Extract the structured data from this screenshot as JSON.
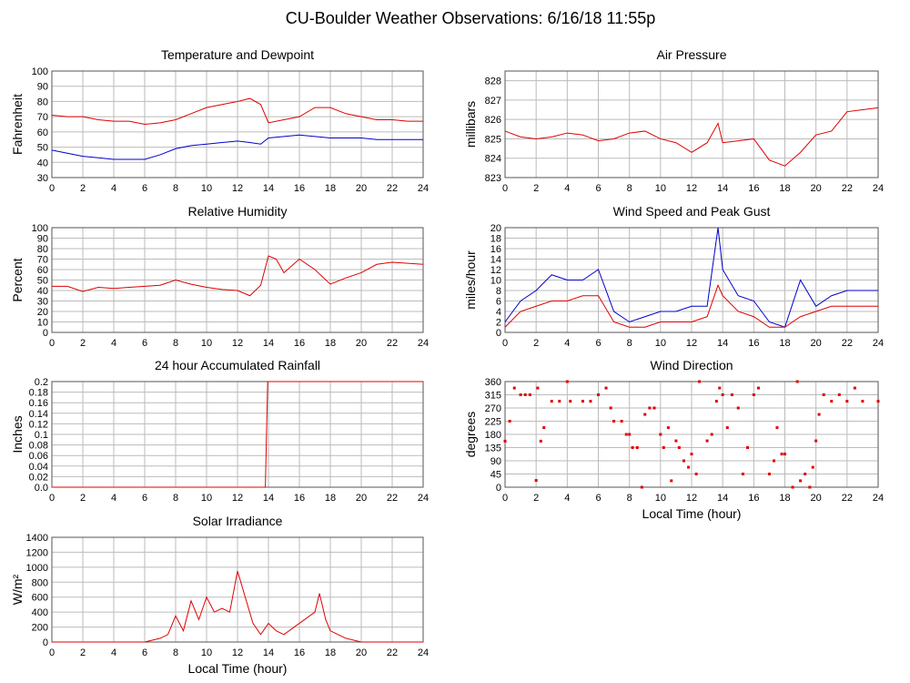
{
  "title": "CU-Boulder Weather Observations: 6/16/18 11:55p",
  "chart_data": [
    {
      "type": "line",
      "title": "Temperature and Dewpoint",
      "ylabel": "Fahrenheit",
      "x": [
        0,
        1,
        2,
        3,
        4,
        5,
        6,
        7,
        8,
        9,
        10,
        11,
        12,
        12.8,
        13.5,
        14,
        15,
        16,
        17,
        18,
        19,
        20,
        21,
        22,
        23,
        24
      ],
      "series": [
        {
          "color": "#e00000",
          "values": [
            71,
            70,
            70,
            68,
            67,
            67,
            65,
            66,
            68,
            72,
            76,
            78,
            80,
            82,
            78,
            66,
            68,
            70,
            76,
            76,
            72,
            70,
            68,
            68,
            67,
            67
          ]
        },
        {
          "color": "#0000cc",
          "values": [
            48,
            46,
            44,
            43,
            42,
            42,
            42,
            45,
            49,
            51,
            52,
            53,
            54,
            53,
            52,
            56,
            57,
            58,
            57,
            56,
            56,
            56,
            55,
            55,
            55,
            55
          ]
        }
      ],
      "xlim": [
        0,
        24
      ],
      "ylim": [
        30,
        100
      ],
      "xticks": [
        0,
        2,
        4,
        6,
        8,
        10,
        12,
        14,
        16,
        18,
        20,
        22,
        24
      ],
      "yticks": [
        30,
        40,
        50,
        60,
        70,
        80,
        90,
        100
      ],
      "grid": true
    },
    {
      "type": "line",
      "title": "Air Pressure",
      "ylabel": "millibars",
      "x": [
        0,
        1,
        2,
        3,
        4,
        5,
        6,
        7,
        8,
        9,
        10,
        11,
        12,
        13,
        13.7,
        14,
        15,
        16,
        17,
        18,
        19,
        20,
        21,
        22,
        23,
        24
      ],
      "series": [
        {
          "color": "#e00000",
          "values": [
            825.4,
            825.1,
            825.0,
            825.1,
            825.3,
            825.2,
            824.9,
            825.0,
            825.3,
            825.4,
            825.0,
            824.8,
            824.3,
            824.8,
            825.8,
            824.8,
            824.9,
            825.0,
            823.9,
            823.6,
            824.3,
            825.2,
            825.4,
            826.4,
            826.5,
            826.6
          ]
        }
      ],
      "xlim": [
        0,
        24
      ],
      "ylim": [
        823,
        828.5
      ],
      "xticks": [
        0,
        2,
        4,
        6,
        8,
        10,
        12,
        14,
        16,
        18,
        20,
        22,
        24
      ],
      "yticks": [
        823,
        824,
        825,
        826,
        827,
        828
      ],
      "grid": true
    },
    {
      "type": "line",
      "title": "Relative Humidity",
      "ylabel": "Percent",
      "x": [
        0,
        1,
        2,
        3,
        4,
        5,
        6,
        7,
        8,
        9,
        10,
        11,
        12,
        12.8,
        13.5,
        14,
        14.5,
        15,
        16,
        17,
        18,
        19,
        20,
        21,
        22,
        23,
        24
      ],
      "series": [
        {
          "color": "#e00000",
          "values": [
            44,
            44,
            39,
            43,
            42,
            43,
            44,
            45,
            50,
            46,
            43,
            41,
            40,
            35,
            45,
            73,
            70,
            57,
            70,
            60,
            46,
            52,
            57,
            65,
            67,
            66,
            65
          ]
        }
      ],
      "xlim": [
        0,
        24
      ],
      "ylim": [
        0,
        100
      ],
      "xticks": [
        0,
        2,
        4,
        6,
        8,
        10,
        12,
        14,
        16,
        18,
        20,
        22,
        24
      ],
      "yticks": [
        0,
        10,
        20,
        30,
        40,
        50,
        60,
        70,
        80,
        90,
        100
      ],
      "grid": true
    },
    {
      "type": "line",
      "title": "Wind Speed and Peak Gust",
      "ylabel": "miles/hour",
      "x": [
        0,
        1,
        2,
        3,
        4,
        5,
        6,
        7,
        8,
        9,
        10,
        11,
        12,
        13,
        13.7,
        14,
        15,
        16,
        17,
        18,
        19,
        20,
        21,
        22,
        23,
        24
      ],
      "series": [
        {
          "color": "#0000cc",
          "values": [
            2,
            6,
            8,
            11,
            10,
            10,
            12,
            4,
            2,
            3,
            4,
            4,
            5,
            5,
            20,
            12,
            7,
            6,
            2,
            1,
            10,
            5,
            7,
            8,
            8,
            8
          ]
        },
        {
          "color": "#e00000",
          "values": [
            1,
            4,
            5,
            6,
            6,
            7,
            7,
            2,
            1,
            1,
            2,
            2,
            2,
            3,
            9,
            7,
            4,
            3,
            1,
            1,
            3,
            4,
            5,
            5,
            5,
            5
          ]
        }
      ],
      "xlim": [
        0,
        24
      ],
      "ylim": [
        0,
        20
      ],
      "xticks": [
        0,
        2,
        4,
        6,
        8,
        10,
        12,
        14,
        16,
        18,
        20,
        22,
        24
      ],
      "yticks": [
        0,
        2,
        4,
        6,
        8,
        10,
        12,
        14,
        16,
        18,
        20
      ],
      "grid": true
    },
    {
      "type": "line",
      "title": "24 hour Accumulated Rainfall",
      "ylabel": "Inches",
      "x": [
        0,
        13.8,
        13.95,
        24
      ],
      "series": [
        {
          "color": "#e00000",
          "values": [
            0,
            0,
            0.2,
            0.2
          ]
        }
      ],
      "xlim": [
        0,
        24
      ],
      "ylim": [
        0,
        0.2
      ],
      "xticks": [
        0,
        2,
        4,
        6,
        8,
        10,
        12,
        14,
        16,
        18,
        20,
        22,
        24
      ],
      "yticks": [
        {
          "value": 0,
          "label": "0.0"
        },
        0.02,
        0.04,
        0.06,
        0.08,
        0.1,
        0.12,
        0.14,
        0.16,
        0.18,
        0.2
      ],
      "grid": true
    },
    {
      "type": "scatter",
      "title": "Wind Direction",
      "ylabel": "degrees",
      "xlabel": "Local Time (hour)",
      "x": [
        0,
        0.3,
        0.6,
        1,
        1.3,
        1.6,
        2,
        2.1,
        2.3,
        2.5,
        3,
        3.5,
        4,
        4.2,
        5,
        5.5,
        6,
        6.5,
        6.8,
        7,
        7.5,
        7.8,
        8,
        8.2,
        8.5,
        8.8,
        9,
        9.3,
        9.6,
        10,
        10.2,
        10.5,
        10.7,
        11,
        11.2,
        11.5,
        11.8,
        12,
        12.3,
        12.5,
        13,
        13.3,
        13.6,
        13.8,
        14,
        14.3,
        14.6,
        15,
        15.3,
        15.6,
        16,
        16.3,
        17,
        17.3,
        17.5,
        17.8,
        18,
        18.5,
        18.8,
        19,
        19.3,
        19.6,
        19.8,
        20,
        20.2,
        20.5,
        21,
        21.5,
        22,
        22.5,
        23,
        24
      ],
      "series": [
        {
          "color": "#e00000",
          "values": [
            157,
            225,
            338,
            315,
            315,
            315,
            23,
            338,
            157,
            203,
            293,
            293,
            360,
            293,
            293,
            293,
            315,
            338,
            270,
            225,
            225,
            180,
            180,
            135,
            135,
            0,
            248,
            270,
            270,
            180,
            135,
            203,
            22,
            158,
            135,
            90,
            68,
            113,
            45,
            360,
            158,
            180,
            293,
            338,
            315,
            203,
            315,
            270,
            45,
            135,
            315,
            338,
            45,
            90,
            203,
            113,
            113,
            0,
            360,
            22,
            45,
            0,
            68,
            158,
            248,
            315,
            293,
            315,
            293,
            338,
            293,
            293
          ]
        }
      ],
      "xlim": [
        0,
        24
      ],
      "ylim": [
        0,
        360
      ],
      "xticks": [
        0,
        2,
        4,
        6,
        8,
        10,
        12,
        14,
        16,
        18,
        20,
        22,
        24
      ],
      "yticks": [
        0,
        45,
        90,
        135,
        180,
        225,
        270,
        315,
        360
      ],
      "grid": true
    },
    {
      "type": "line",
      "title": "Solar Irradiance",
      "ylabel": "W/m²",
      "xlabel": "Local Time (hour)",
      "x": [
        0,
        6,
        7,
        7.5,
        8,
        8.5,
        9,
        9.5,
        10,
        10.5,
        11,
        11.5,
        12,
        12.5,
        13,
        13.5,
        14,
        14.5,
        15,
        16,
        17,
        17.3,
        17.7,
        18,
        18.5,
        19,
        20,
        24
      ],
      "series": [
        {
          "color": "#e00000",
          "values": [
            0,
            0,
            50,
            100,
            350,
            150,
            550,
            300,
            600,
            400,
            450,
            400,
            950,
            600,
            250,
            100,
            250,
            150,
            100,
            250,
            400,
            650,
            300,
            150,
            100,
            50,
            0,
            0
          ]
        }
      ],
      "xlim": [
        0,
        24
      ],
      "ylim": [
        0,
        1400
      ],
      "xticks": [
        0,
        2,
        4,
        6,
        8,
        10,
        12,
        14,
        16,
        18,
        20,
        22,
        24
      ],
      "yticks": [
        0,
        200,
        400,
        600,
        800,
        1000,
        1200,
        1400
      ],
      "grid": true
    }
  ]
}
